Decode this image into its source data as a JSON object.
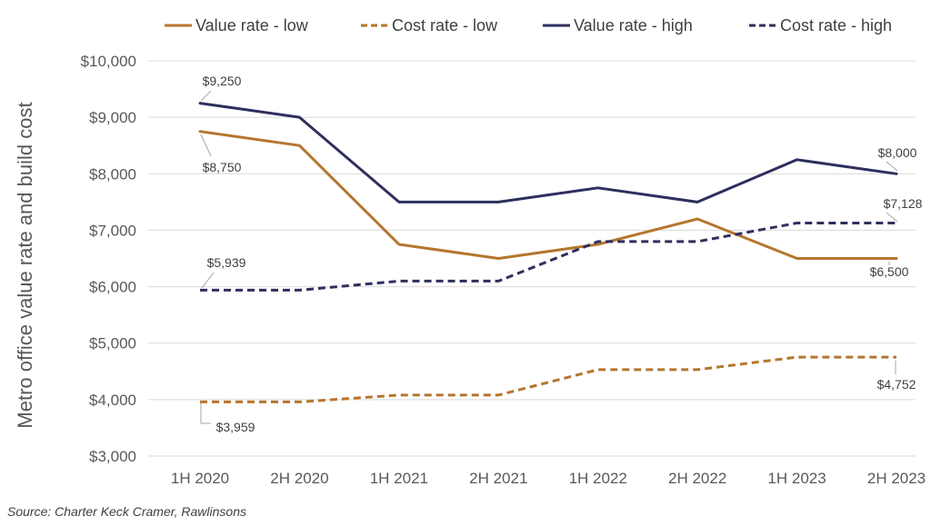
{
  "chart_data": {
    "type": "line",
    "x": [
      "1H 2020",
      "2H 2020",
      "1H 2021",
      "2H 2021",
      "1H 2022",
      "2H 2022",
      "1H 2023",
      "2H 2023"
    ],
    "ylabel": "Metro office value rate and build cost",
    "xlabel": "",
    "ylim": [
      3000,
      10000
    ],
    "yticks": [
      "$3,000",
      "$4,000",
      "$5,000",
      "$6,000",
      "$7,000",
      "$8,000",
      "$9,000",
      "$10,000"
    ],
    "grid": true,
    "legend_position": "top",
    "series": [
      {
        "name": "Value rate - low",
        "values": [
          8750,
          8500,
          6750,
          6500,
          6750,
          7200,
          6500,
          6500
        ],
        "color": "#B5762E",
        "dash": "solid"
      },
      {
        "name": "Cost rate - low",
        "values": [
          3959,
          3959,
          4080,
          4080,
          4530,
          4530,
          4752,
          4752
        ],
        "color": "#B5762E",
        "dash": "dashed"
      },
      {
        "name": "Value rate - high",
        "values": [
          9250,
          9000,
          7500,
          7500,
          7750,
          7500,
          8250,
          8000
        ],
        "color": "#2E2F5E",
        "dash": "solid"
      },
      {
        "name": "Cost rate - high",
        "values": [
          5939,
          5939,
          6100,
          6100,
          6800,
          6800,
          7128,
          7128
        ],
        "color": "#2E2F5E",
        "dash": "dashed"
      }
    ],
    "annotations": [
      {
        "text": "$9,250"
      },
      {
        "text": "$8,750"
      },
      {
        "text": "$5,939"
      },
      {
        "text": "$3,959"
      },
      {
        "text": "$8,000"
      },
      {
        "text": "$7,128"
      },
      {
        "text": "$6,500"
      },
      {
        "text": "$4,752"
      }
    ]
  },
  "source": "Source: Charter Keck Cramer, Rawlinsons"
}
